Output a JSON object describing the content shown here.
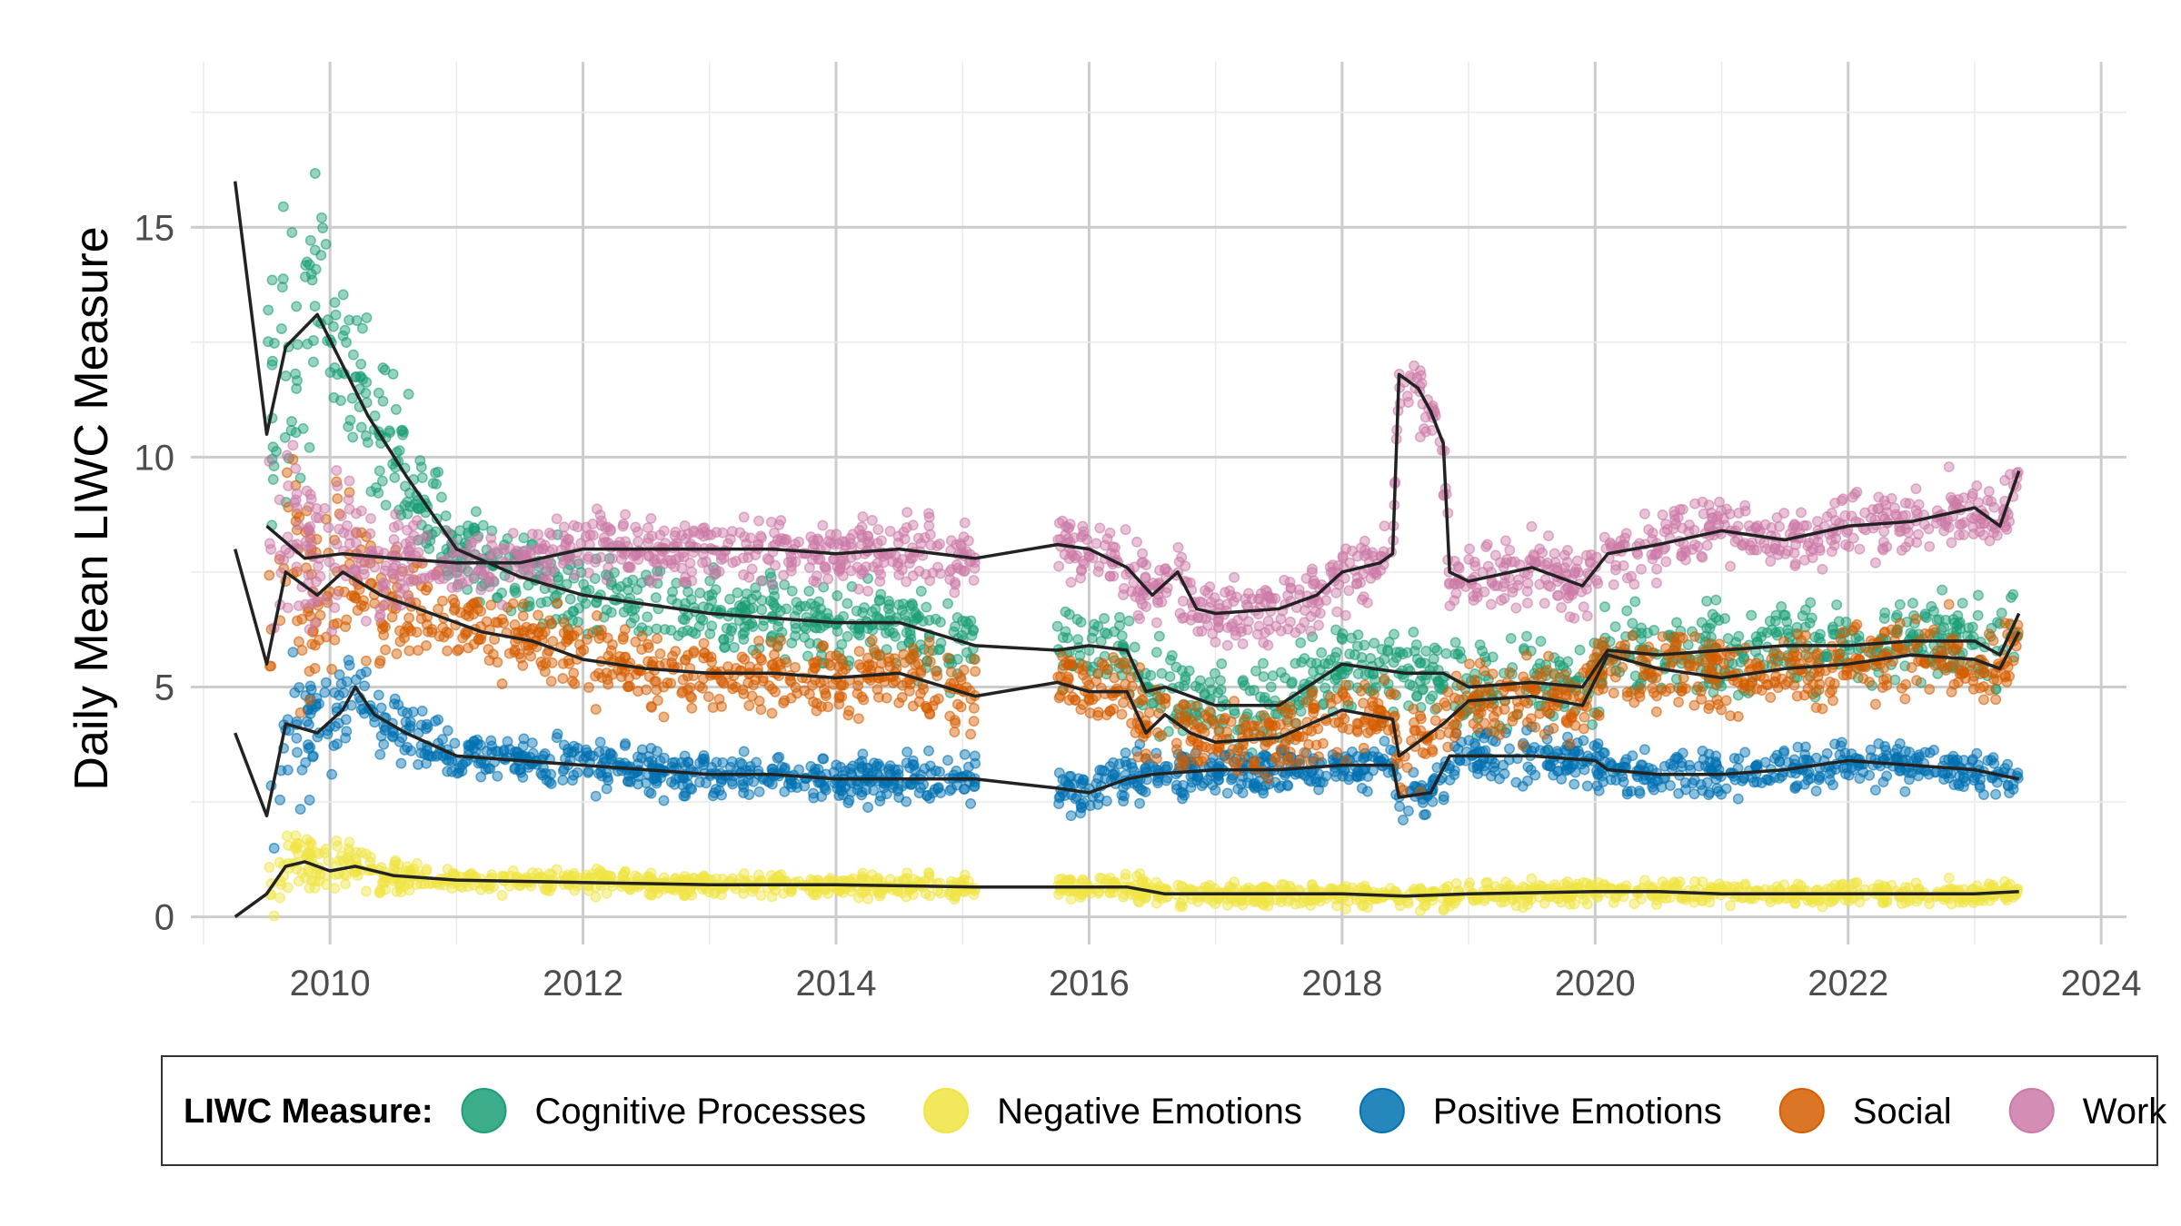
{
  "chart_data": {
    "type": "scatter",
    "title": "",
    "xlabel": "",
    "ylabel": "Daily Mean LIWC Measure",
    "xlim": [
      2008.9,
      2024.2
    ],
    "ylim": [
      -0.6,
      18.6
    ],
    "x_ticks": [
      2010,
      2012,
      2014,
      2016,
      2018,
      2020,
      2022,
      2024
    ],
    "y_ticks": [
      0,
      5,
      10,
      15
    ],
    "x_tick_labels": [
      "2010",
      "2012",
      "2014",
      "2016",
      "2018",
      "2020",
      "2022",
      "2024"
    ],
    "y_tick_labels": [
      "0",
      "5",
      "10",
      "15"
    ],
    "grid": true,
    "legend": {
      "title": "LIWC Measure:",
      "position": "bottom"
    },
    "trend_line_color": "#222222",
    "data_gap": [
      2015.1,
      2015.75
    ],
    "series": [
      {
        "name": "Cognitive Processes",
        "color": "#1a9e77",
        "spread": 0.45,
        "trend": [
          [
            2009.25,
            16.0
          ],
          [
            2009.5,
            10.5
          ],
          [
            2009.65,
            12.4
          ],
          [
            2009.9,
            13.1
          ],
          [
            2010.1,
            12.0
          ],
          [
            2010.3,
            10.9
          ],
          [
            2010.6,
            9.6
          ],
          [
            2011.0,
            8.0
          ],
          [
            2011.5,
            7.4
          ],
          [
            2012.0,
            7.0
          ],
          [
            2012.5,
            6.8
          ],
          [
            2013.0,
            6.6
          ],
          [
            2013.5,
            6.5
          ],
          [
            2014.0,
            6.4
          ],
          [
            2014.5,
            6.4
          ],
          [
            2015.1,
            5.9
          ],
          [
            2015.75,
            5.8
          ],
          [
            2016.0,
            5.9
          ],
          [
            2016.3,
            5.8
          ],
          [
            2016.45,
            4.9
          ],
          [
            2016.6,
            5.0
          ],
          [
            2016.8,
            4.8
          ],
          [
            2017.0,
            4.6
          ],
          [
            2017.5,
            4.6
          ],
          [
            2018.0,
            5.5
          ],
          [
            2018.5,
            5.3
          ],
          [
            2018.8,
            5.3
          ],
          [
            2019.0,
            5.0
          ],
          [
            2019.5,
            5.1
          ],
          [
            2019.9,
            5.0
          ],
          [
            2020.1,
            5.8
          ],
          [
            2020.5,
            5.7
          ],
          [
            2021.0,
            5.8
          ],
          [
            2021.5,
            5.9
          ],
          [
            2022.0,
            5.9
          ],
          [
            2022.5,
            6.0
          ],
          [
            2023.0,
            6.0
          ],
          [
            2023.2,
            5.7
          ],
          [
            2023.35,
            6.6
          ]
        ]
      },
      {
        "name": "Negative Emotions",
        "color": "#f0e442",
        "spread": 0.12,
        "trend": [
          [
            2009.25,
            0.0
          ],
          [
            2009.5,
            0.5
          ],
          [
            2009.65,
            1.1
          ],
          [
            2009.8,
            1.2
          ],
          [
            2010.0,
            1.0
          ],
          [
            2010.2,
            1.1
          ],
          [
            2010.5,
            0.9
          ],
          [
            2011.0,
            0.8
          ],
          [
            2012.0,
            0.75
          ],
          [
            2013.0,
            0.7
          ],
          [
            2014.0,
            0.7
          ],
          [
            2015.1,
            0.65
          ],
          [
            2015.75,
            0.65
          ],
          [
            2016.3,
            0.65
          ],
          [
            2016.6,
            0.5
          ],
          [
            2017.0,
            0.5
          ],
          [
            2018.0,
            0.5
          ],
          [
            2018.5,
            0.45
          ],
          [
            2019.0,
            0.5
          ],
          [
            2020.0,
            0.55
          ],
          [
            2020.5,
            0.55
          ],
          [
            2021.0,
            0.5
          ],
          [
            2022.0,
            0.5
          ],
          [
            2023.0,
            0.5
          ],
          [
            2023.35,
            0.55
          ]
        ]
      },
      {
        "name": "Positive Emotions",
        "color": "#0072b2",
        "spread": 0.25,
        "trend": [
          [
            2009.25,
            4.0
          ],
          [
            2009.5,
            2.2
          ],
          [
            2009.65,
            4.2
          ],
          [
            2009.9,
            4.0
          ],
          [
            2010.1,
            4.5
          ],
          [
            2010.2,
            5.0
          ],
          [
            2010.35,
            4.4
          ],
          [
            2010.6,
            4.0
          ],
          [
            2011.0,
            3.5
          ],
          [
            2011.5,
            3.4
          ],
          [
            2012.0,
            3.3
          ],
          [
            2012.5,
            3.2
          ],
          [
            2013.0,
            3.1
          ],
          [
            2013.5,
            3.1
          ],
          [
            2014.0,
            3.0
          ],
          [
            2014.5,
            3.0
          ],
          [
            2015.1,
            3.0
          ],
          [
            2015.75,
            2.8
          ],
          [
            2016.0,
            2.7
          ],
          [
            2016.3,
            3.0
          ],
          [
            2016.5,
            3.1
          ],
          [
            2017.0,
            3.2
          ],
          [
            2017.5,
            3.2
          ],
          [
            2018.0,
            3.3
          ],
          [
            2018.4,
            3.3
          ],
          [
            2018.45,
            2.6
          ],
          [
            2018.7,
            2.7
          ],
          [
            2018.85,
            3.5
          ],
          [
            2019.5,
            3.5
          ],
          [
            2020.0,
            3.4
          ],
          [
            2020.1,
            3.2
          ],
          [
            2020.5,
            3.1
          ],
          [
            2021.0,
            3.1
          ],
          [
            2021.5,
            3.2
          ],
          [
            2022.0,
            3.4
          ],
          [
            2022.5,
            3.3
          ],
          [
            2023.0,
            3.2
          ],
          [
            2023.35,
            3.0
          ]
        ]
      },
      {
        "name": "Social",
        "color": "#d55e00",
        "spread": 0.4,
        "trend": [
          [
            2009.25,
            8.0
          ],
          [
            2009.5,
            5.5
          ],
          [
            2009.65,
            7.5
          ],
          [
            2009.9,
            7.0
          ],
          [
            2010.1,
            7.5
          ],
          [
            2010.4,
            7.0
          ],
          [
            2010.8,
            6.6
          ],
          [
            2011.2,
            6.2
          ],
          [
            2011.6,
            6.0
          ],
          [
            2012.0,
            5.6
          ],
          [
            2012.5,
            5.4
          ],
          [
            2013.0,
            5.3
          ],
          [
            2013.5,
            5.3
          ],
          [
            2014.0,
            5.2
          ],
          [
            2014.5,
            5.3
          ],
          [
            2015.1,
            4.8
          ],
          [
            2015.75,
            5.1
          ],
          [
            2016.0,
            4.9
          ],
          [
            2016.3,
            4.9
          ],
          [
            2016.45,
            4.0
          ],
          [
            2016.6,
            4.4
          ],
          [
            2016.8,
            4.0
          ],
          [
            2017.0,
            3.8
          ],
          [
            2017.5,
            3.9
          ],
          [
            2018.0,
            4.5
          ],
          [
            2018.4,
            4.3
          ],
          [
            2018.45,
            3.5
          ],
          [
            2018.8,
            4.2
          ],
          [
            2019.0,
            4.7
          ],
          [
            2019.5,
            4.8
          ],
          [
            2019.9,
            4.6
          ],
          [
            2020.1,
            5.7
          ],
          [
            2020.5,
            5.4
          ],
          [
            2021.0,
            5.2
          ],
          [
            2021.5,
            5.4
          ],
          [
            2022.0,
            5.5
          ],
          [
            2022.5,
            5.7
          ],
          [
            2023.0,
            5.6
          ],
          [
            2023.2,
            5.4
          ],
          [
            2023.35,
            6.2
          ]
        ]
      },
      {
        "name": "Work",
        "color": "#cc79a7",
        "spread": 0.35,
        "trend": [
          [
            2009.5,
            8.5
          ],
          [
            2009.8,
            7.8
          ],
          [
            2010.1,
            7.9
          ],
          [
            2010.5,
            7.8
          ],
          [
            2011.0,
            7.7
          ],
          [
            2011.5,
            7.7
          ],
          [
            2012.0,
            8.0
          ],
          [
            2012.5,
            8.0
          ],
          [
            2013.0,
            8.0
          ],
          [
            2013.5,
            8.0
          ],
          [
            2014.0,
            7.9
          ],
          [
            2014.5,
            8.0
          ],
          [
            2015.1,
            7.8
          ],
          [
            2015.75,
            8.1
          ],
          [
            2016.0,
            8.0
          ],
          [
            2016.3,
            7.6
          ],
          [
            2016.5,
            7.0
          ],
          [
            2016.7,
            7.5
          ],
          [
            2016.85,
            6.7
          ],
          [
            2017.0,
            6.6
          ],
          [
            2017.5,
            6.7
          ],
          [
            2017.8,
            7.0
          ],
          [
            2018.0,
            7.5
          ],
          [
            2018.3,
            7.7
          ],
          [
            2018.4,
            7.9
          ],
          [
            2018.45,
            11.8
          ],
          [
            2018.6,
            11.5
          ],
          [
            2018.7,
            11.0
          ],
          [
            2018.8,
            10.3
          ],
          [
            2018.85,
            7.5
          ],
          [
            2019.0,
            7.3
          ],
          [
            2019.5,
            7.6
          ],
          [
            2019.9,
            7.2
          ],
          [
            2020.1,
            7.9
          ],
          [
            2020.5,
            8.1
          ],
          [
            2021.0,
            8.4
          ],
          [
            2021.5,
            8.2
          ],
          [
            2022.0,
            8.5
          ],
          [
            2022.5,
            8.6
          ],
          [
            2023.0,
            8.9
          ],
          [
            2023.2,
            8.5
          ],
          [
            2023.35,
            9.7
          ]
        ]
      }
    ]
  }
}
